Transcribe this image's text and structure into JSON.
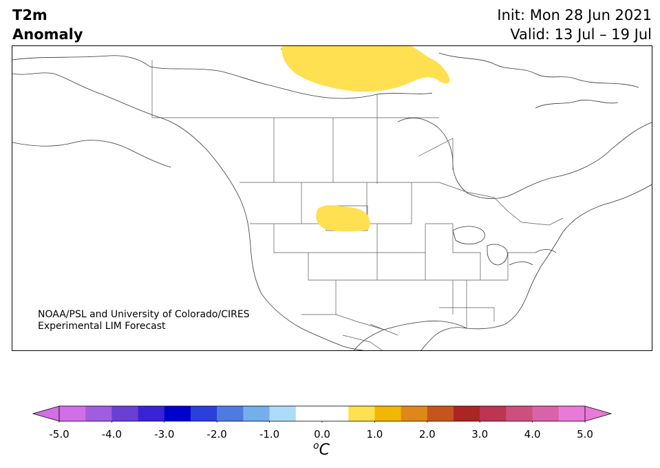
{
  "header": {
    "title_line1": "T2m",
    "title_line2": "Anomaly",
    "init_text": "Init: Mon 28 Jun 2021",
    "valid_text": "Valid: 13 Jul – 19 Jul"
  },
  "credit": {
    "line1": "NOAA/PSL and University of Colorado/CIRES",
    "line2": "Experimental LIM Forecast"
  },
  "map": {
    "region": "North America",
    "anomaly_areas": [
      {
        "label": "Canadian Arctic warm anomaly",
        "category": "0.5 to 1.0"
      },
      {
        "label": "Wyoming warm anomaly",
        "category": "0.5 to 1.0"
      }
    ]
  },
  "colorbar": {
    "unit_symbol": "o",
    "unit_letter": "C",
    "tick_labels": [
      "-5.0",
      "-4.0",
      "-3.0",
      "-2.0",
      "-1.0",
      "0.0",
      "1.0",
      "2.0",
      "3.0",
      "4.0",
      "5.0"
    ],
    "extend_low_color": "#d16fe6",
    "extend_high_color": "#ea7ad8",
    "bins": [
      {
        "range": "-5.0 to -4.5",
        "color": "#d16fe6"
      },
      {
        "range": "-4.5 to -4.0",
        "color": "#a05de0"
      },
      {
        "range": "-4.0 to -3.5",
        "color": "#6a3fd6"
      },
      {
        "range": "-3.5 to -3.0",
        "color": "#3a23d4"
      },
      {
        "range": "-3.0 to -2.5",
        "color": "#0000cd"
      },
      {
        "range": "-2.5 to -2.0",
        "color": "#2a3fdb"
      },
      {
        "range": "-2.0 to -1.5",
        "color": "#4f7ae2"
      },
      {
        "range": "-1.5 to -1.0",
        "color": "#74aeec"
      },
      {
        "range": "-1.0 to -0.5",
        "color": "#acdcf7"
      },
      {
        "range": "-0.5 to 0.0",
        "color": "#ffffff"
      },
      {
        "range": "0.0 to 0.5",
        "color": "#ffffff"
      },
      {
        "range": "0.5 to 1.0",
        "color": "#ffe050"
      },
      {
        "range": "1.0 to 1.5",
        "color": "#f2b705"
      },
      {
        "range": "1.5 to 2.0",
        "color": "#df8818"
      },
      {
        "range": "2.0 to 2.5",
        "color": "#c6551d"
      },
      {
        "range": "2.5 to 3.0",
        "color": "#ab2525"
      },
      {
        "range": "3.0 to 3.5",
        "color": "#bd3553"
      },
      {
        "range": "3.5 to 4.0",
        "color": "#cc4f7d"
      },
      {
        "range": "4.0 to 4.5",
        "color": "#d963a6"
      },
      {
        "range": "4.5 to 5.0",
        "color": "#ea7ad8"
      }
    ]
  }
}
